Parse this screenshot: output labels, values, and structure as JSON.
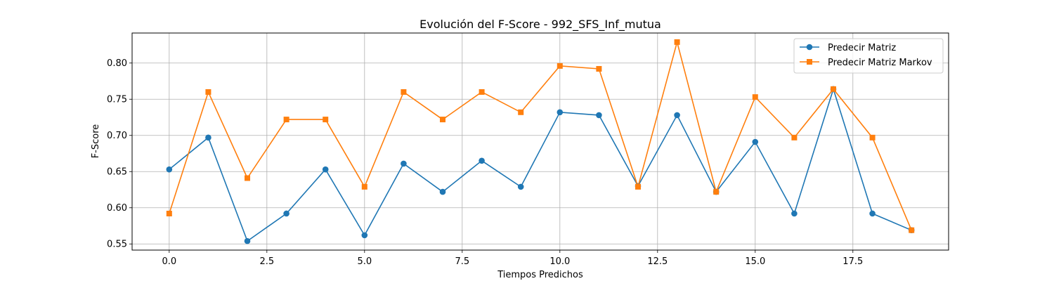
{
  "chart_data": {
    "type": "line",
    "title": "Evolución del F-Score - 992_SFS_Inf_mutua",
    "xlabel": "Tiempos Predichos",
    "ylabel": "F-Score",
    "xlim": [
      -0.95,
      19.95
    ],
    "ylim": [
      0.5415,
      0.8415
    ],
    "xticks": [
      0.0,
      2.5,
      5.0,
      7.5,
      10.0,
      12.5,
      15.0,
      17.5
    ],
    "xtick_labels": [
      "0.0",
      "2.5",
      "5.0",
      "7.5",
      "10.0",
      "12.5",
      "15.0",
      "17.5"
    ],
    "yticks": [
      0.55,
      0.6,
      0.65,
      0.7,
      0.75,
      0.8
    ],
    "ytick_labels": [
      "0.55",
      "0.60",
      "0.65",
      "0.70",
      "0.75",
      "0.80"
    ],
    "grid": true,
    "legend_position": "top-right",
    "x": [
      0,
      1,
      2,
      3,
      4,
      5,
      6,
      7,
      8,
      9,
      10,
      11,
      12,
      13,
      14,
      15,
      16,
      17,
      18,
      19
    ],
    "series": [
      {
        "name": "Predecir Matriz",
        "color": "#1f77b4",
        "marker": "circle",
        "values": [
          0.653,
          0.697,
          0.554,
          0.592,
          0.653,
          0.562,
          0.661,
          0.622,
          0.665,
          0.629,
          0.732,
          0.728,
          0.63,
          0.728,
          0.622,
          0.691,
          0.592,
          0.764,
          0.592,
          0.569
        ]
      },
      {
        "name": "Predecir Matriz Markov",
        "color": "#ff7f0e",
        "marker": "square",
        "values": [
          0.592,
          0.76,
          0.641,
          0.722,
          0.722,
          0.629,
          0.76,
          0.722,
          0.76,
          0.732,
          0.796,
          0.792,
          0.629,
          0.829,
          0.622,
          0.753,
          0.697,
          0.764,
          0.697,
          0.569
        ]
      }
    ]
  }
}
